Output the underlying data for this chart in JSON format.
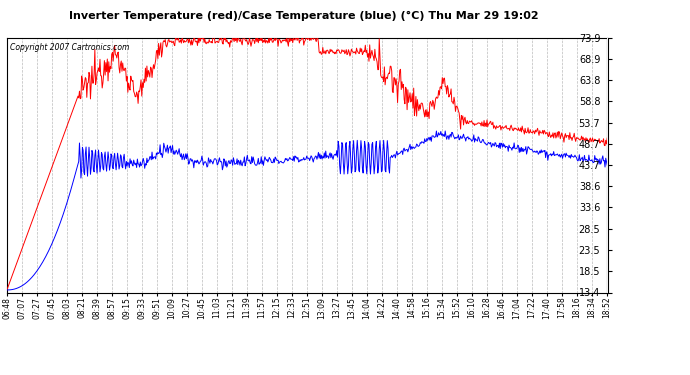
{
  "title": "Inverter Temperature (red)/Case Temperature (blue) (°C) Thu Mar 29 19:02",
  "copyright": "Copyright 2007 Cartronics.com",
  "yticks": [
    13.4,
    18.5,
    23.5,
    28.5,
    33.6,
    38.6,
    43.7,
    48.7,
    53.7,
    58.8,
    63.8,
    68.9,
    73.9
  ],
  "ymin": 13.4,
  "ymax": 73.9,
  "bg_color": "#ffffff",
  "plot_bg_color": "#ffffff",
  "grid_color": "#bbbbbb",
  "red_color": "#ff0000",
  "blue_color": "#0000ff",
  "figsize": [
    6.9,
    3.75
  ],
  "dpi": 100,
  "xtick_labels": [
    "06:48",
    "07:07",
    "07:27",
    "07:45",
    "08:03",
    "08:21",
    "08:39",
    "08:57",
    "09:15",
    "09:33",
    "09:51",
    "10:09",
    "10:27",
    "10:45",
    "11:03",
    "11:21",
    "11:39",
    "11:57",
    "12:15",
    "12:33",
    "12:51",
    "13:09",
    "13:27",
    "13:45",
    "14:04",
    "14:22",
    "14:40",
    "14:58",
    "15:16",
    "15:34",
    "15:52",
    "16:10",
    "16:28",
    "16:46",
    "17:04",
    "17:22",
    "17:40",
    "17:58",
    "18:16",
    "18:34",
    "18:52"
  ]
}
